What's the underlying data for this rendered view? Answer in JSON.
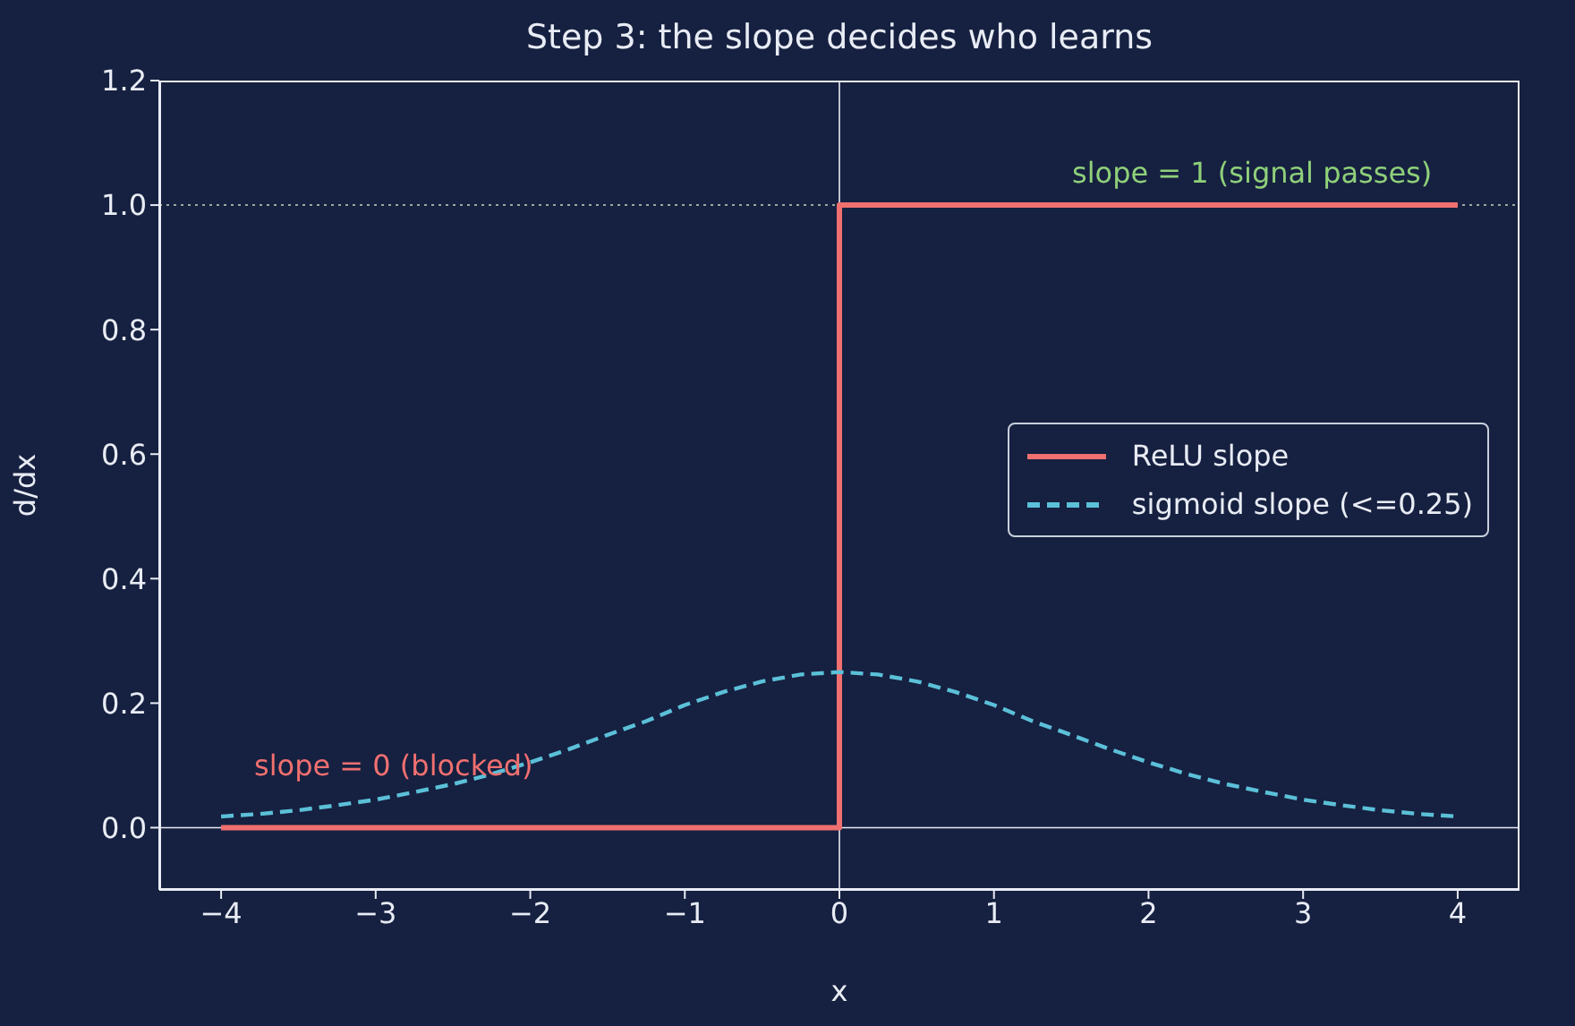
{
  "chart_data": {
    "type": "line",
    "title": "Step 3: the slope decides who learns",
    "xlabel": "x",
    "ylabel": "d/dx",
    "xlim": [
      -4.4,
      4.4
    ],
    "ylim": [
      -0.1,
      1.2
    ],
    "xticks": [
      {
        "value": -4,
        "label": "−4"
      },
      {
        "value": -3,
        "label": "−3"
      },
      {
        "value": -2,
        "label": "−2"
      },
      {
        "value": -1,
        "label": "−1"
      },
      {
        "value": 0,
        "label": "0"
      },
      {
        "value": 1,
        "label": "1"
      },
      {
        "value": 2,
        "label": "2"
      },
      {
        "value": 3,
        "label": "3"
      },
      {
        "value": 4,
        "label": "4"
      }
    ],
    "yticks": [
      {
        "value": 0,
        "label": "0.0"
      },
      {
        "value": 0.2,
        "label": "0.2"
      },
      {
        "value": 0.4,
        "label": "0.4"
      },
      {
        "value": 0.6,
        "label": "0.6"
      },
      {
        "value": 0.8,
        "label": "0.8"
      },
      {
        "value": 1,
        "label": "1.0"
      },
      {
        "value": 1.2,
        "label": "1.2"
      }
    ],
    "legend": "right",
    "marker": "none",
    "series": [
      {
        "name": "ReLU slope",
        "color": "#f07070",
        "line_style": "solid",
        "x": [
          -4,
          0,
          0,
          4
        ],
        "values": [
          0,
          0,
          1,
          1
        ]
      },
      {
        "name": "sigmoid slope (<=0.25)",
        "color": "#5bc0d8",
        "line_style": "dashed",
        "x": [
          -4,
          -3.75,
          -3.5,
          -3.25,
          -3,
          -2.75,
          -2.5,
          -2.25,
          -2,
          -1.75,
          -1.5,
          -1.25,
          -1,
          -0.75,
          -0.5,
          -0.25,
          0,
          0.25,
          0.5,
          0.75,
          1,
          1.25,
          1.5,
          1.75,
          2,
          2.25,
          2.5,
          2.75,
          3,
          3.25,
          3.5,
          3.75,
          4
        ],
        "values": [
          0.018,
          0.022,
          0.028,
          0.036,
          0.045,
          0.057,
          0.07,
          0.086,
          0.105,
          0.126,
          0.149,
          0.171,
          0.197,
          0.218,
          0.235,
          0.246,
          0.25,
          0.246,
          0.235,
          0.218,
          0.197,
          0.171,
          0.149,
          0.126,
          0.105,
          0.086,
          0.07,
          0.057,
          0.045,
          0.036,
          0.028,
          0.022,
          0.018
        ]
      }
    ],
    "ref_lines": [
      {
        "axis": "y",
        "value": 1,
        "color": "#9aa8a0",
        "line_style": "dotted"
      },
      {
        "axis": "y",
        "value": 0,
        "color": "#e8ecf4",
        "line_style": "solid"
      },
      {
        "axis": "x",
        "value": 0,
        "color": "#e8ecf4",
        "line_style": "solid"
      }
    ],
    "annotations": [
      "slope = 1 (signal passes)",
      "slope = 0 (blocked)"
    ]
  }
}
